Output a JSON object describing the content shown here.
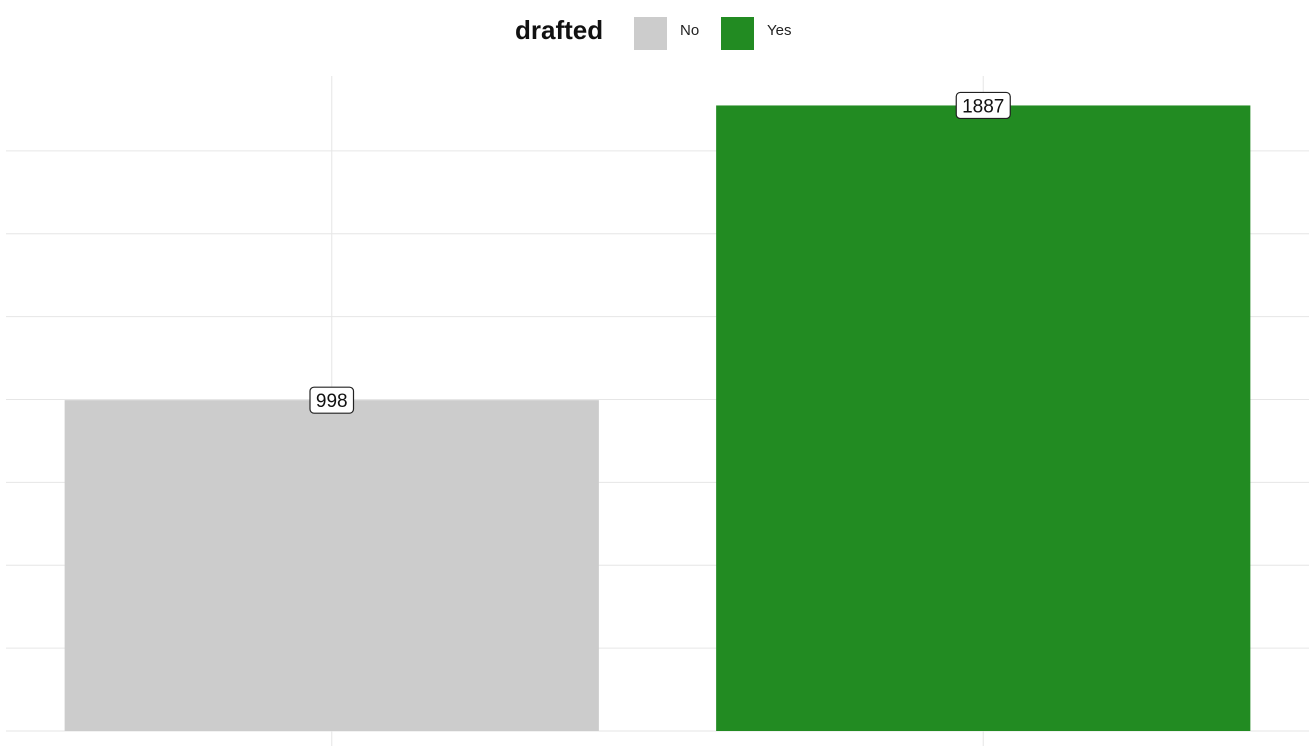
{
  "chart_data": {
    "type": "bar",
    "categories": [
      "No",
      "Yes"
    ],
    "values": [
      998,
      1887
    ],
    "data_labels": [
      "998",
      "1887"
    ],
    "title": "",
    "xlabel": "",
    "ylabel": "",
    "ylim": [
      0,
      2000
    ],
    "grid": true,
    "legend": {
      "title": "drafted",
      "placement": "top",
      "entries": [
        {
          "label": "No",
          "color": "#cccccc"
        },
        {
          "label": "Yes",
          "color": "#228b22"
        }
      ]
    },
    "colors": [
      "#cccccc",
      "#228b22"
    ]
  }
}
